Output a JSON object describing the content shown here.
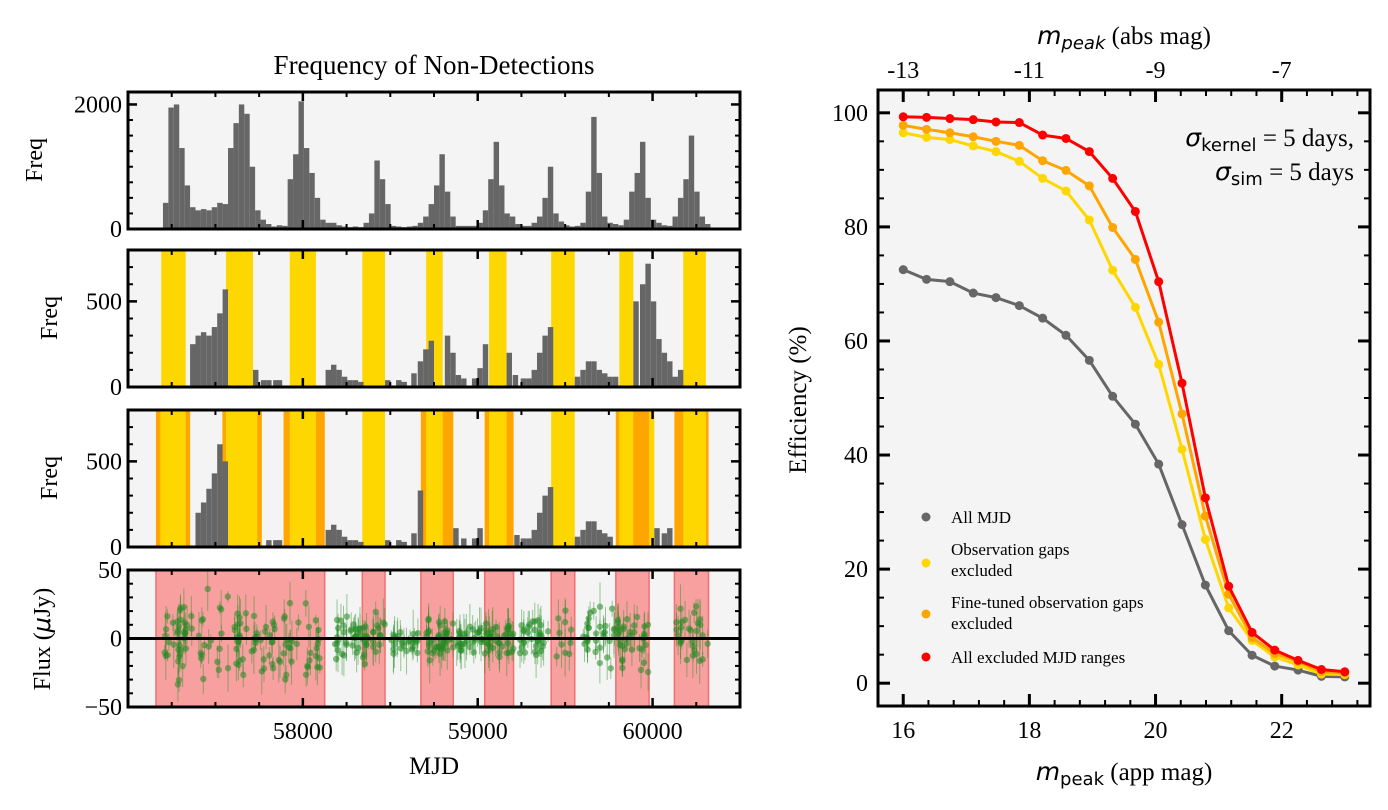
{
  "left_title": "Frequency of Non-Detections",
  "left_ylabel": "Freq",
  "flux_ylabel_prefix": "Flux (",
  "flux_ylabel_mu": "μ",
  "flux_ylabel_suffix": "Jy)",
  "left_xlabel": "MJD",
  "right_xlabel_sym": "m",
  "right_xlabel_sub": "peak",
  "right_xlabel_unit": " (app mag)",
  "right_top_xlabel_sym": "m",
  "right_top_xlabel_sub": "peak",
  "right_top_xlabel_unit": " (abs mag)",
  "right_ylabel": "Efficiency (%)",
  "annotation": {
    "line1_sym": "σ",
    "line1_sub": "kernel",
    "line1_rest": " = 5 days,",
    "line2_sym": "σ",
    "line2_sub": "sim",
    "line2_rest": " = 5 days"
  },
  "colors": {
    "hist": "#666666",
    "gap": "#FFD700",
    "finetuned": "#FFA500",
    "excluded": "#F8A0A0",
    "excluded_edge": "#F07070",
    "flux_points": "#228B22",
    "eff_all": "#666666",
    "eff_gaps": "#FFD700",
    "eff_fine": "#FFA500",
    "eff_excl": "#FF0000",
    "panel_bg": "#F4F4F4"
  },
  "chart_data": [
    {
      "id": "hist1",
      "type": "bar",
      "title": "Frequency of Non-Detections",
      "ylabel": "Freq",
      "xlim": [
        57000,
        60500
      ],
      "ylim": [
        0,
        2200
      ],
      "yticks": [
        0,
        2000
      ],
      "bin_width": 31,
      "bins": [
        [
          57200,
          420
        ],
        [
          57231,
          1950
        ],
        [
          57262,
          2000
        ],
        [
          57293,
          1300
        ],
        [
          57324,
          700
        ],
        [
          57355,
          350
        ],
        [
          57386,
          300
        ],
        [
          57417,
          320
        ],
        [
          57448,
          300
        ],
        [
          57479,
          350
        ],
        [
          57510,
          420
        ],
        [
          57541,
          400
        ],
        [
          57572,
          1300
        ],
        [
          57603,
          1700
        ],
        [
          57634,
          2000
        ],
        [
          57665,
          1850
        ],
        [
          57696,
          1000
        ],
        [
          57727,
          300
        ],
        [
          57758,
          150
        ],
        [
          57789,
          80
        ],
        [
          57820,
          40
        ],
        [
          57851,
          60
        ],
        [
          57882,
          50
        ],
        [
          57913,
          800
        ],
        [
          57944,
          1200
        ],
        [
          57975,
          2050
        ],
        [
          58006,
          1300
        ],
        [
          58037,
          900
        ],
        [
          58068,
          500
        ],
        [
          58099,
          150
        ],
        [
          58130,
          100
        ],
        [
          58161,
          100
        ],
        [
          58192,
          60
        ],
        [
          58223,
          40
        ],
        [
          58254,
          30
        ],
        [
          58285,
          40
        ],
        [
          58316,
          30
        ],
        [
          58347,
          100
        ],
        [
          58378,
          250
        ],
        [
          58409,
          1100
        ],
        [
          58440,
          800
        ],
        [
          58471,
          400
        ],
        [
          58502,
          50
        ],
        [
          58533,
          40
        ],
        [
          58564,
          30
        ],
        [
          58595,
          40
        ],
        [
          58626,
          50
        ],
        [
          58657,
          100
        ],
        [
          58688,
          200
        ],
        [
          58719,
          400
        ],
        [
          58750,
          700
        ],
        [
          58781,
          1200
        ],
        [
          58812,
          600
        ],
        [
          58843,
          200
        ],
        [
          58874,
          50
        ],
        [
          58905,
          50
        ],
        [
          58936,
          50
        ],
        [
          58967,
          50
        ],
        [
          58998,
          100
        ],
        [
          59029,
          300
        ],
        [
          59060,
          800
        ],
        [
          59091,
          1400
        ],
        [
          59122,
          700
        ],
        [
          59153,
          250
        ],
        [
          59184,
          200
        ],
        [
          59215,
          80
        ],
        [
          59246,
          50
        ],
        [
          59277,
          50
        ],
        [
          59308,
          100
        ],
        [
          59339,
          200
        ],
        [
          59370,
          500
        ],
        [
          59401,
          1000
        ],
        [
          59432,
          250
        ],
        [
          59463,
          120
        ],
        [
          59494,
          60
        ],
        [
          59525,
          40
        ],
        [
          59556,
          50
        ],
        [
          59587,
          100
        ],
        [
          59618,
          600
        ],
        [
          59649,
          1800
        ],
        [
          59680,
          900
        ],
        [
          59711,
          200
        ],
        [
          59742,
          100
        ],
        [
          59773,
          80
        ],
        [
          59804,
          60
        ],
        [
          59835,
          150
        ],
        [
          59866,
          600
        ],
        [
          59897,
          900
        ],
        [
          59928,
          1400
        ],
        [
          59959,
          500
        ],
        [
          59990,
          150
        ],
        [
          60021,
          100
        ],
        [
          60052,
          60
        ],
        [
          60083,
          50
        ],
        [
          60114,
          200
        ],
        [
          60145,
          500
        ],
        [
          60176,
          800
        ],
        [
          60207,
          1500
        ],
        [
          60238,
          600
        ],
        [
          60269,
          200
        ],
        [
          60300,
          80
        ]
      ]
    },
    {
      "id": "hist2",
      "type": "bar",
      "ylabel": "Freq",
      "xlim": [
        57000,
        60500
      ],
      "ylim": [
        0,
        800
      ],
      "yticks": [
        0,
        500
      ],
      "bin_width": 31,
      "gap_spans": [
        [
          57190,
          57330
        ],
        [
          57560,
          57715
        ],
        [
          57925,
          58075
        ],
        [
          58340,
          58470
        ],
        [
          58705,
          58800
        ],
        [
          59065,
          59165
        ],
        [
          59420,
          59555
        ],
        [
          59810,
          59890
        ],
        [
          60175,
          60305
        ]
      ],
      "bins": [
        [
          57355,
          250
        ],
        [
          57386,
          300
        ],
        [
          57417,
          320
        ],
        [
          57448,
          300
        ],
        [
          57479,
          350
        ],
        [
          57510,
          430
        ],
        [
          57541,
          570
        ],
        [
          57715,
          100
        ],
        [
          57760,
          40
        ],
        [
          57790,
          40
        ],
        [
          57830,
          40
        ],
        [
          57851,
          40
        ],
        [
          58130,
          100
        ],
        [
          58161,
          130
        ],
        [
          58192,
          100
        ],
        [
          58223,
          60
        ],
        [
          58254,
          40
        ],
        [
          58285,
          40
        ],
        [
          58316,
          30
        ],
        [
          58470,
          40
        ],
        [
          58533,
          40
        ],
        [
          58564,
          30
        ],
        [
          58620,
          80
        ],
        [
          58657,
          150
        ],
        [
          58688,
          220
        ],
        [
          58719,
          270
        ],
        [
          58812,
          300
        ],
        [
          58843,
          200
        ],
        [
          58874,
          70
        ],
        [
          58905,
          50
        ],
        [
          58967,
          50
        ],
        [
          58998,
          110
        ],
        [
          59029,
          250
        ],
        [
          59165,
          200
        ],
        [
          59200,
          70
        ],
        [
          59246,
          50
        ],
        [
          59277,
          50
        ],
        [
          59308,
          100
        ],
        [
          59339,
          200
        ],
        [
          59370,
          300
        ],
        [
          59401,
          350
        ],
        [
          59555,
          60
        ],
        [
          59587,
          100
        ],
        [
          59618,
          150
        ],
        [
          59649,
          150
        ],
        [
          59680,
          100
        ],
        [
          59711,
          80
        ],
        [
          59742,
          60
        ],
        [
          59773,
          60
        ],
        [
          59890,
          500
        ],
        [
          59928,
          600
        ],
        [
          59959,
          720
        ],
        [
          59990,
          500
        ],
        [
          60021,
          280
        ],
        [
          60052,
          200
        ],
        [
          60083,
          150
        ],
        [
          60114,
          60
        ],
        [
          60145,
          100
        ]
      ]
    },
    {
      "id": "hist3",
      "type": "bar",
      "ylabel": "Freq",
      "xlim": [
        57000,
        60500
      ],
      "ylim": [
        0,
        800
      ],
      "yticks": [
        0,
        500
      ],
      "bin_width": 31,
      "gap_spans": [
        [
          57160,
          57355
        ],
        [
          57540,
          57765
        ],
        [
          57890,
          58125
        ],
        [
          58340,
          58470
        ],
        [
          58675,
          58860
        ],
        [
          59040,
          59205
        ],
        [
          59420,
          59555
        ],
        [
          59790,
          60010
        ],
        [
          60125,
          60320
        ]
      ],
      "finetuned_spans": [
        [
          57160,
          57185
        ],
        [
          57330,
          57355
        ],
        [
          57540,
          57560
        ],
        [
          57740,
          57765
        ],
        [
          57890,
          57925
        ],
        [
          58075,
          58125
        ],
        [
          58675,
          58705
        ],
        [
          58800,
          58860
        ],
        [
          59040,
          59065
        ],
        [
          59165,
          59205
        ],
        [
          59790,
          59810
        ],
        [
          59890,
          59980
        ],
        [
          60125,
          60175
        ],
        [
          60305,
          60320
        ]
      ],
      "bins": [
        [
          57386,
          200
        ],
        [
          57417,
          260
        ],
        [
          57448,
          340
        ],
        [
          57479,
          430
        ],
        [
          57510,
          600
        ],
        [
          57541,
          500
        ],
        [
          57790,
          40
        ],
        [
          57830,
          40
        ],
        [
          57851,
          40
        ],
        [
          58130,
          100
        ],
        [
          58161,
          130
        ],
        [
          58192,
          100
        ],
        [
          58223,
          60
        ],
        [
          58254,
          40
        ],
        [
          58285,
          40
        ],
        [
          58316,
          30
        ],
        [
          58470,
          40
        ],
        [
          58533,
          40
        ],
        [
          58564,
          30
        ],
        [
          58620,
          80
        ],
        [
          58657,
          330
        ],
        [
          58860,
          110
        ],
        [
          58905,
          50
        ],
        [
          58967,
          50
        ],
        [
          58998,
          110
        ],
        [
          59209,
          70
        ],
        [
          59246,
          50
        ],
        [
          59277,
          50
        ],
        [
          59308,
          100
        ],
        [
          59339,
          200
        ],
        [
          59370,
          300
        ],
        [
          59401,
          350
        ],
        [
          59555,
          60
        ],
        [
          59587,
          100
        ],
        [
          59618,
          150
        ],
        [
          59649,
          150
        ],
        [
          59680,
          100
        ],
        [
          59711,
          80
        ],
        [
          59742,
          60
        ],
        [
          60010,
          110
        ],
        [
          60052,
          80
        ],
        [
          60083,
          110
        ]
      ]
    },
    {
      "id": "flux",
      "type": "scatter",
      "ylabel": "Flux (μJy)",
      "xlabel": "MJD",
      "xlim": [
        57000,
        60500
      ],
      "ylim": [
        -50,
        50
      ],
      "yticks": [
        -50,
        0,
        50
      ],
      "xticks": [
        58000,
        59000,
        60000
      ],
      "excluded_spans": [
        [
          57160,
          58125
        ],
        [
          58340,
          58470
        ],
        [
          58675,
          58860
        ],
        [
          59040,
          59205
        ],
        [
          59420,
          59555
        ],
        [
          59790,
          59980
        ],
        [
          60125,
          60320
        ]
      ]
    },
    {
      "id": "efficiency",
      "type": "line",
      "xlabel": "m_peak (app mag)",
      "ylabel": "Efficiency (%)",
      "top_xlabel": "m_peak (abs mag)",
      "xlim": [
        15.6,
        23.4
      ],
      "ylim": [
        -4,
        104
      ],
      "xticks": [
        16,
        18,
        20,
        22
      ],
      "yticks": [
        0,
        20,
        40,
        60,
        80,
        100
      ],
      "top_ticks": [
        {
          "app": 16,
          "label": "-13"
        },
        {
          "app": 18,
          "label": "-11"
        },
        {
          "app": 20,
          "label": "-9"
        },
        {
          "app": 22,
          "label": "-7"
        }
      ],
      "legend_position": "lower left",
      "x": [
        16.0,
        16.37,
        16.74,
        17.11,
        17.47,
        17.84,
        18.21,
        18.58,
        18.95,
        19.32,
        19.68,
        20.05,
        20.42,
        20.79,
        21.16,
        21.53,
        21.89,
        22.26,
        22.63,
        23.0
      ],
      "series": [
        {
          "name": "All MJD",
          "key": "all",
          "values": [
            72.5,
            70.8,
            70.4,
            68.4,
            67.6,
            66.2,
            64.0,
            61.0,
            56.6,
            50.3,
            45.4,
            38.4,
            27.8,
            17.2,
            9.2,
            4.9,
            3.0,
            2.3,
            1.2,
            1.1
          ]
        },
        {
          "name": "Observation gaps excluded",
          "key": "gaps",
          "values": [
            96.5,
            95.7,
            95.3,
            94.2,
            93.2,
            91.5,
            88.5,
            86.3,
            81.2,
            72.4,
            65.9,
            55.9,
            41.0,
            25.2,
            13.2,
            7.5,
            4.6,
            3.2,
            1.6,
            1.5
          ]
        },
        {
          "name": "Fine-tuned observation gaps excluded",
          "key": "fine",
          "values": [
            97.8,
            97.1,
            96.5,
            95.8,
            95.0,
            94.3,
            91.6,
            89.9,
            87.2,
            79.9,
            74.3,
            63.3,
            47.2,
            29.3,
            15.6,
            8.0,
            5.2,
            3.8,
            2.0,
            1.8
          ]
        },
        {
          "name": "All excluded MJD ranges",
          "key": "excl",
          "values": [
            99.3,
            99.2,
            99.0,
            98.8,
            98.4,
            98.3,
            96.1,
            95.5,
            93.2,
            88.5,
            82.7,
            70.4,
            52.6,
            32.5,
            17.0,
            8.9,
            5.8,
            4.0,
            2.4,
            2.0
          ]
        }
      ]
    }
  ]
}
